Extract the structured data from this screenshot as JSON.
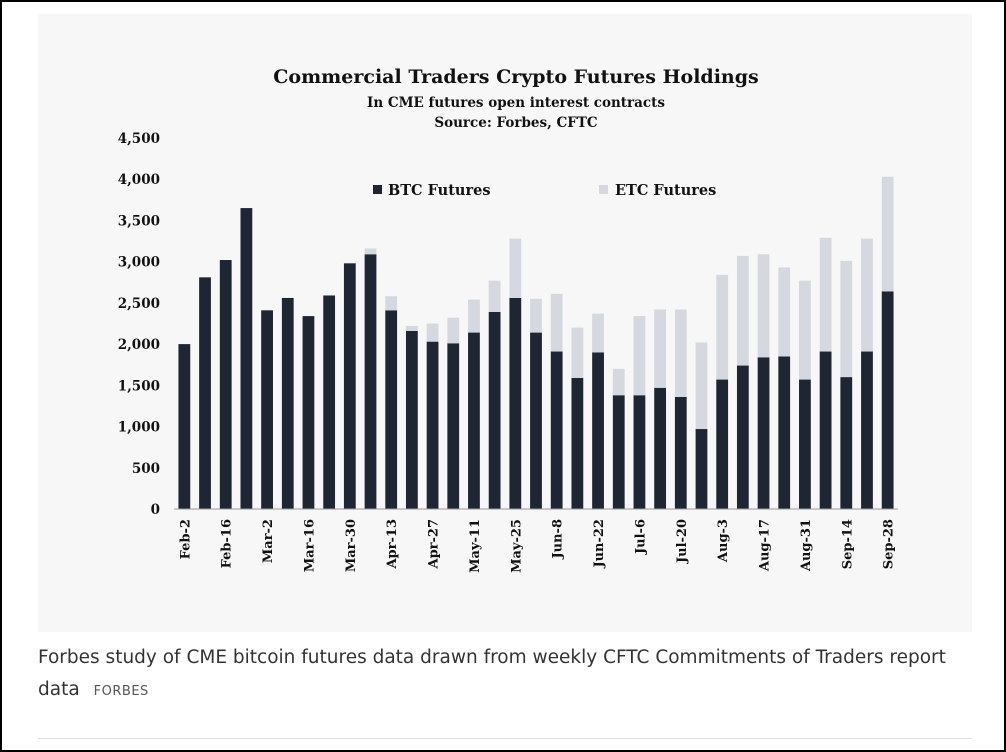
{
  "chart_data": {
    "type": "bar",
    "stacked": true,
    "title": "Commercial Traders Crypto Futures Holdings",
    "subtitle": "In CME futures open interest contracts",
    "source": "Source: Forbes, CFTC",
    "ylim": [
      0,
      4500
    ],
    "yticks": [
      "0",
      "500",
      "1,000",
      "1,500",
      "2,000",
      "2,500",
      "3,000",
      "3,500",
      "4,000",
      "4,500"
    ],
    "ytick_values": [
      0,
      500,
      1000,
      1500,
      2000,
      2500,
      3000,
      3500,
      4000,
      4500
    ],
    "grid": false,
    "legend_position": "top",
    "x_tick_labels": [
      "Feb-2",
      "Feb-16",
      "Mar-2",
      "Mar-16",
      "Mar-30",
      "Apr-13",
      "Apr-27",
      "May-11",
      "May-25",
      "Jun-8",
      "Jun-22",
      "Jul-6",
      "Jul-20",
      "Aug-3",
      "Aug-17",
      "Aug-31",
      "Sep-14",
      "Sep-28"
    ],
    "series": [
      {
        "name": "BTC Futures",
        "color": "#1f2633",
        "values": [
          2000,
          2810,
          3020,
          3650,
          2410,
          2560,
          2340,
          2590,
          2980,
          3090,
          2410,
          2160,
          2030,
          2010,
          2140,
          2390,
          2560,
          2140,
          1910,
          1590,
          1900,
          1380,
          1380,
          1470,
          1360,
          970,
          1570,
          1740,
          1840,
          1850,
          1570,
          1910,
          1600,
          1910,
          2640
        ]
      },
      {
        "name": "ETC Futures",
        "color": "#d5d8de",
        "values": [
          0,
          0,
          0,
          0,
          0,
          0,
          0,
          0,
          0,
          70,
          170,
          60,
          220,
          310,
          400,
          380,
          720,
          410,
          700,
          610,
          470,
          320,
          960,
          950,
          1060,
          1050,
          1270,
          1330,
          1250,
          1080,
          1200,
          1380,
          1410,
          1370,
          1390
        ]
      }
    ]
  },
  "caption": {
    "text": "Forbes study of CME bitcoin futures data drawn from weekly CFTC Commitments of Traders report data",
    "credit": "FORBES"
  }
}
